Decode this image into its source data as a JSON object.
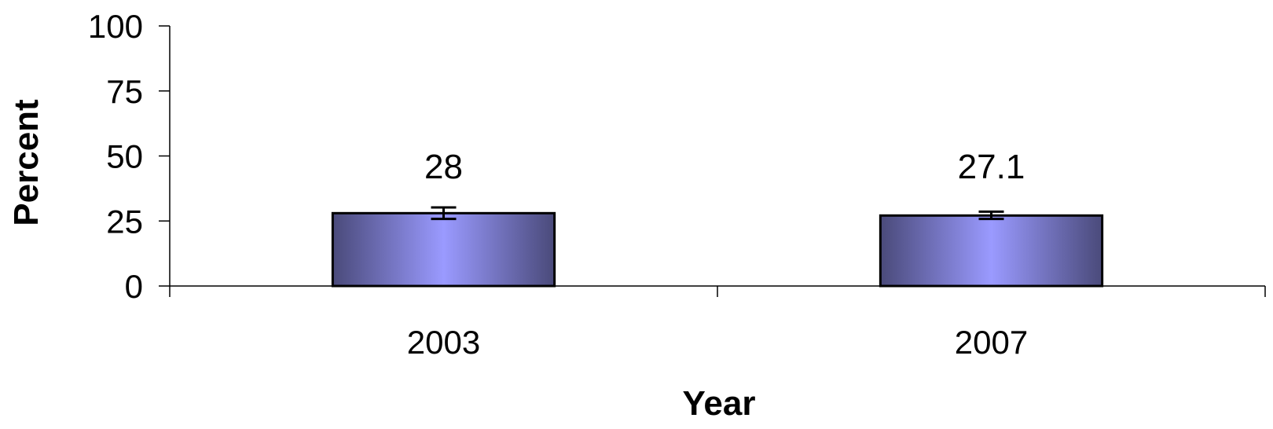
{
  "chart_data": {
    "type": "bar",
    "categories": [
      "2003",
      "2007"
    ],
    "values": [
      28,
      27.1
    ],
    "value_labels": [
      "28",
      "27.1"
    ],
    "error_bars": [
      {
        "low": 25.8,
        "high": 30.2
      },
      {
        "low": 25.8,
        "high": 28.6
      }
    ],
    "title": "",
    "xlabel": "Year",
    "ylabel": "Percent",
    "ylim": [
      0,
      100
    ],
    "yticks": [
      0,
      25,
      50,
      75,
      100
    ],
    "ytick_labels": [
      "0",
      "25",
      "50",
      "75",
      "100"
    ],
    "grid": false,
    "legend": "none",
    "colors": {
      "bar_edge": "#4a4a7a",
      "bar_center": "#9a9aff",
      "outline": "#000000",
      "axis": "#000000"
    }
  }
}
